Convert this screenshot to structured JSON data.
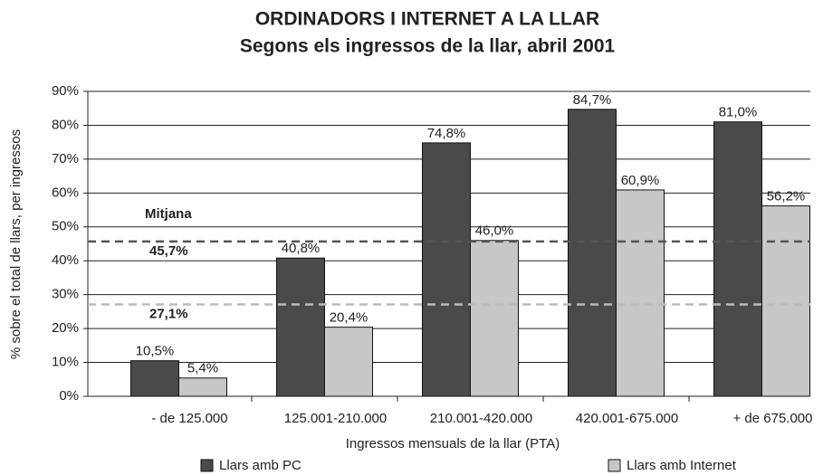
{
  "chart_data": {
    "type": "bar",
    "title": "ORDINADORS I INTERNET A LA LLAR",
    "subtitle": "Segons els ingressos de la llar, abril 2001",
    "x_label": "Ingressos mensuals de la llar (PTA)",
    "y_label": "% sobre el total de llars, per ingressos",
    "categories": [
      "- de 125.000",
      "125.001-210.000",
      "210.001-420.000",
      "420.001-675.000",
      "+ de 675.000"
    ],
    "series": [
      {
        "name": "Llars amb PC",
        "color": "#4a4a4d",
        "values": [
          10.5,
          40.8,
          74.8,
          84.7,
          81.0
        ],
        "value_labels": [
          "10,5%",
          "40,8%",
          "74,8%",
          "84,7%",
          "81,0%"
        ]
      },
      {
        "name": "Llars amb Internet",
        "color": "#c6c7c9",
        "values": [
          5.4,
          20.4,
          46.0,
          60.9,
          56.2
        ],
        "value_labels": [
          "5,4%",
          "20,4%",
          "46,0%",
          "60,9%",
          "56,2%"
        ]
      }
    ],
    "reference_title": "Mitjana",
    "reference_lines": [
      {
        "value": 45.7,
        "label": "45,7%",
        "color": "#555555"
      },
      {
        "value": 27.1,
        "label": "27,1%",
        "color": "#bbbbbb"
      }
    ],
    "ylim": [
      0,
      90
    ],
    "yticks": [
      {
        "value": 0,
        "label": "0%"
      },
      {
        "value": 10,
        "label": "10%"
      },
      {
        "value": 20,
        "label": "20%"
      },
      {
        "value": 30,
        "label": "30%"
      },
      {
        "value": 40,
        "label": "40%"
      },
      {
        "value": 50,
        "label": "50%"
      },
      {
        "value": 60,
        "label": "60%"
      },
      {
        "value": 70,
        "label": "70%"
      },
      {
        "value": 80,
        "label": "80%"
      },
      {
        "value": 90,
        "label": "90%"
      }
    ],
    "grid": true
  }
}
